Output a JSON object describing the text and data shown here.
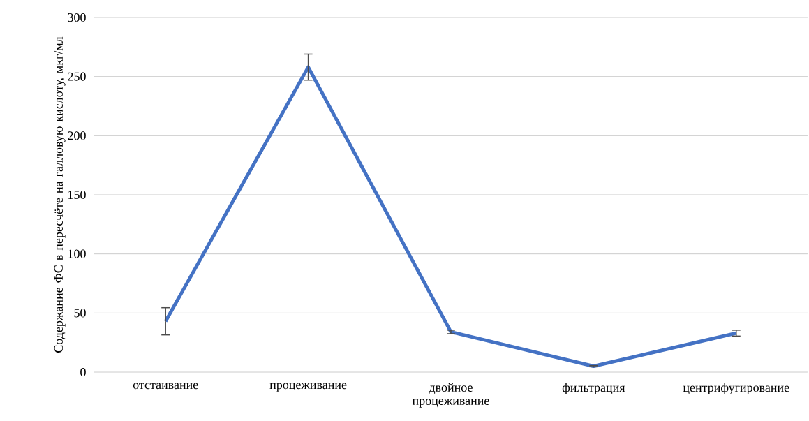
{
  "chart_data": {
    "type": "line",
    "ylabel": "Содержание ФС в пересчёте на галловую кислоту, мкг/мл",
    "categories": [
      "отстаивание",
      "процеживание",
      "двойное процеживание",
      "фильтрация",
      "центрифугирование"
    ],
    "values": [
      43,
      258,
      34,
      5,
      33
    ],
    "errors": [
      11.5,
      11,
      1.5,
      0.5,
      2.5
    ],
    "color": "#4472c4",
    "ylim": [
      0,
      300
    ],
    "yticks": [
      0,
      50,
      100,
      150,
      200,
      250,
      300
    ],
    "grid": "y",
    "marker": "none",
    "line_style": "solid"
  }
}
